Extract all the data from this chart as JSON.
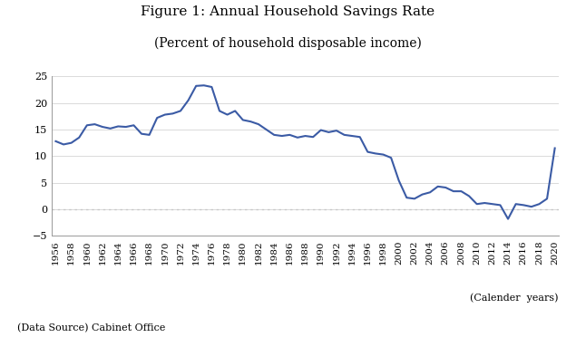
{
  "title": "Figure 1: Annual Household Savings Rate",
  "subtitle": "(Percent of household disposable income)",
  "xlabel_note": "(Calender  years)",
  "datasource": "(Data Source) Cabinet Office",
  "line_color": "#3B5BA5",
  "background_color": "#ffffff",
  "zero_line_color": "#bbbbbb",
  "ylim": [
    -5,
    25
  ],
  "yticks": [
    -5,
    0,
    5,
    10,
    15,
    20,
    25
  ],
  "years": [
    1956,
    1957,
    1958,
    1959,
    1960,
    1961,
    1962,
    1963,
    1964,
    1965,
    1966,
    1967,
    1968,
    1969,
    1970,
    1971,
    1972,
    1973,
    1974,
    1975,
    1976,
    1977,
    1978,
    1979,
    1980,
    1981,
    1982,
    1983,
    1984,
    1985,
    1986,
    1987,
    1988,
    1989,
    1990,
    1991,
    1992,
    1993,
    1994,
    1995,
    1996,
    1997,
    1998,
    1999,
    2000,
    2001,
    2002,
    2003,
    2004,
    2005,
    2006,
    2007,
    2008,
    2009,
    2010,
    2011,
    2012,
    2013,
    2014,
    2015,
    2016,
    2017,
    2018,
    2019,
    2020
  ],
  "values": [
    12.8,
    12.2,
    12.5,
    13.5,
    15.8,
    16.0,
    15.5,
    15.2,
    15.6,
    15.5,
    15.8,
    14.2,
    14.0,
    17.2,
    17.8,
    18.0,
    18.5,
    20.5,
    23.2,
    23.3,
    23.0,
    18.5,
    17.8,
    18.5,
    16.8,
    16.5,
    16.0,
    15.0,
    14.0,
    13.8,
    14.0,
    13.5,
    13.8,
    13.6,
    14.9,
    14.5,
    14.8,
    14.0,
    13.8,
    13.6,
    10.8,
    10.5,
    10.3,
    9.7,
    5.4,
    2.2,
    2.0,
    2.8,
    3.2,
    4.3,
    4.1,
    3.4,
    3.4,
    2.5,
    1.0,
    1.2,
    1.0,
    0.8,
    -1.8,
    1.0,
    0.8,
    0.5,
    1.0,
    2.0,
    11.5
  ]
}
